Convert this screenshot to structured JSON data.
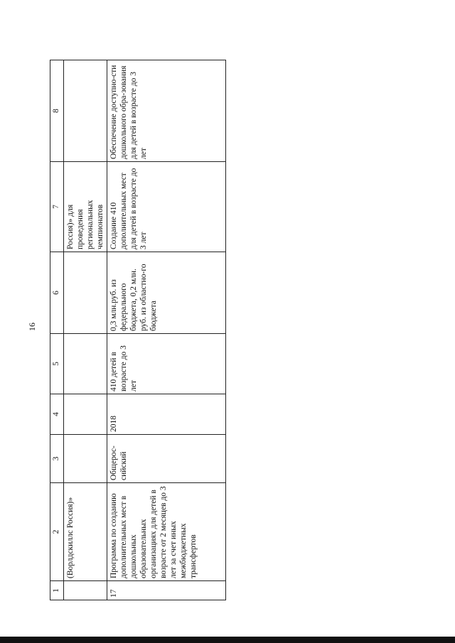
{
  "page_number": "16",
  "table": {
    "headers": [
      "1",
      "2",
      "3",
      "4",
      "5",
      "6",
      "7",
      "8"
    ],
    "rows": [
      [
        "",
        "(Ворлдскиллс Россия)»",
        "",
        "",
        "",
        "",
        "Россия)» для проведения региональных чемпионатов",
        ""
      ],
      [
        "17",
        "Программа по созданию дополнительных мест в дошкольных образовательных организациях для детей в возрасте от 2 месяцев до 3 лет за счет иных межбюджетных трансфертов",
        "Общерос-сийский",
        "2018",
        "410 детей в возрасте до 3 лет",
        "0,3 млн.руб. из федерального бюджета, 0,2 млн. руб. из областно-го бюджета",
        "Создание 410 дополнительных мест для детей в возрасте до 3 лет",
        "Обеспечение доступно-сти дошкольного обра-зования для детей в возрасте до 3 лет"
      ]
    ]
  }
}
